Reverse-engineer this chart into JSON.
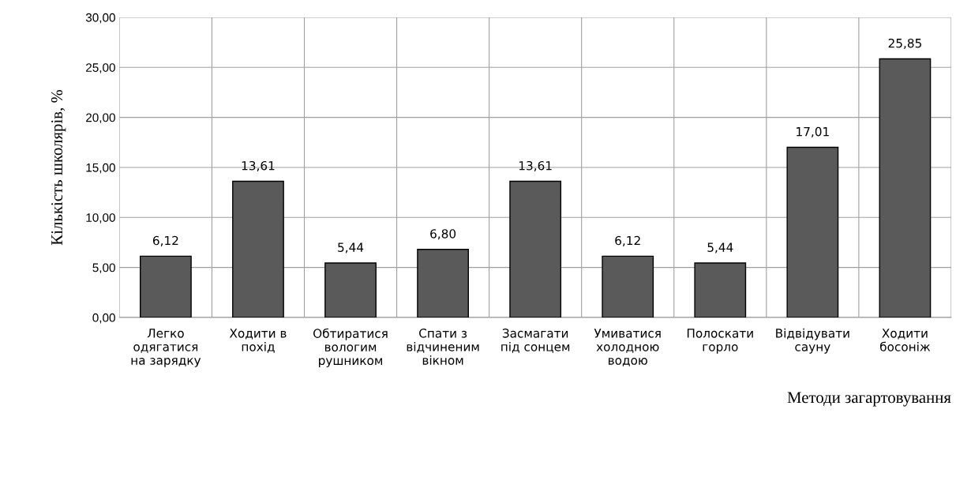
{
  "chart_data": {
    "type": "bar",
    "xlabel": "Методи загартовування",
    "ylabel": "Кількість школярів, %",
    "categories": [
      "Легко\nодягатися\nна зарядку",
      "Ходити в\nпохід",
      "Обтиратися\nвологим\nрушником",
      "Спати з\nвідчиненим\nвікном",
      "Засмагати\nпід сонцем",
      "Умиватися\nхолодною\nводою",
      "Полоскати\nгорло",
      "Відвідувати\nсауну",
      "Ходити\nбосоніж"
    ],
    "values": [
      6.12,
      13.61,
      5.44,
      6.8,
      13.61,
      6.12,
      5.44,
      17.01,
      25.85
    ],
    "value_labels": [
      "6,12",
      "13,61",
      "5,44",
      "6,80",
      "13,61",
      "6,12",
      "5,44",
      "17,01",
      "25,85"
    ],
    "color": "#5a5a5a",
    "ylim": [
      0,
      30
    ],
    "yticks": [
      {
        "value": 0,
        "label": "0,00"
      },
      {
        "value": 5,
        "label": "5,00"
      },
      {
        "value": 10,
        "label": "10,00"
      },
      {
        "value": 15,
        "label": "15,00"
      },
      {
        "value": 20,
        "label": "20,00"
      },
      {
        "value": 25,
        "label": "25,00"
      },
      {
        "value": 30,
        "label": "30,00"
      }
    ],
    "grid": true,
    "legend": false
  }
}
